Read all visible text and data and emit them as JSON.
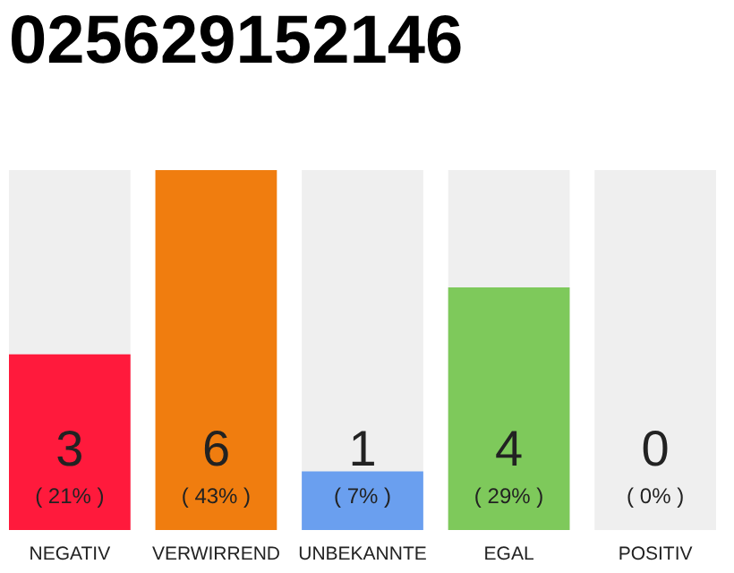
{
  "chart_data": {
    "type": "bar",
    "title": "025629152146",
    "categories": [
      "NEGATIV",
      "VERWIRREND",
      "UNBEKANNTE",
      "EGAL",
      "POSITIV"
    ],
    "values": [
      21,
      43,
      7,
      29,
      0
    ],
    "colors": [
      "#ff1a3c",
      "#f07d0f",
      "#6a9fef",
      "#7ec95b",
      "#1fa84f"
    ],
    "value_labels": [
      "( 21% )",
      "( 43% )",
      "( 7% )",
      "( 29% )",
      "( 0% )"
    ],
    "annotations": [
      "3",
      "6",
      "1",
      "4",
      "0"
    ],
    "bands": [
      {
        "axis": "x",
        "from": "NEGATIV",
        "to": "NEGATIV",
        "color": "#efefef"
      },
      {
        "axis": "x",
        "from": "UNBEKANNTE",
        "to": "UNBEKANNTE",
        "color": "#efefef"
      },
      {
        "axis": "x",
        "from": "EGAL",
        "to": "EGAL",
        "color": "#efefef"
      },
      {
        "axis": "x",
        "from": "POSITIV",
        "to": "POSITIV",
        "color": "#efefef"
      }
    ]
  }
}
